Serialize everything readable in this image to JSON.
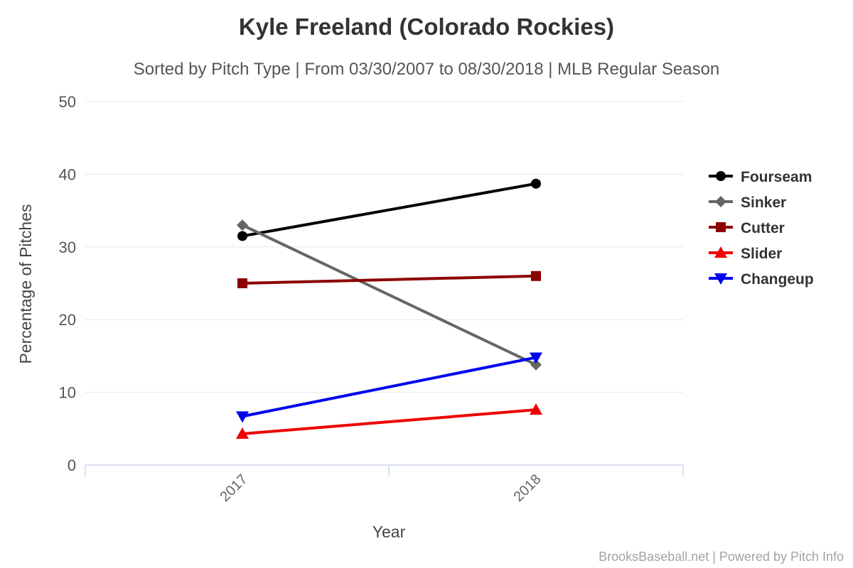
{
  "title": "Kyle Freeland (Colorado Rockies)",
  "subtitle": "Sorted by Pitch Type | From 03/30/2007 to 08/30/2018 | MLB Regular Season",
  "footer": "BrooksBaseball.net | Powered by Pitch Info",
  "colors": {
    "axis_line": "#ccd6eb",
    "gridline": "#e6e6e6",
    "title_text": "#333333",
    "subtitle_text": "#555555",
    "footer_text": "#a3a3a3"
  },
  "chart_data": {
    "type": "line",
    "categories": [
      "2017",
      "2018"
    ],
    "series": [
      {
        "name": "Fourseam",
        "values": [
          31.5,
          38.7
        ],
        "color": "#000000",
        "marker": "circle"
      },
      {
        "name": "Sinker",
        "values": [
          33.0,
          13.8
        ],
        "color": "#666666",
        "marker": "diamond"
      },
      {
        "name": "Cutter",
        "values": [
          25.0,
          26.0
        ],
        "color": "#8b0000",
        "marker": "square"
      },
      {
        "name": "Slider",
        "values": [
          4.3,
          7.6
        ],
        "color": "#ee0000",
        "marker": "triangle-up"
      },
      {
        "name": "Changeup",
        "values": [
          6.7,
          14.8
        ],
        "color": "#0000ee",
        "marker": "triangle-down"
      }
    ],
    "title": "Kyle Freeland (Colorado Rockies)",
    "subtitle": "Sorted by Pitch Type | From 03/30/2007 to 08/30/2018 | MLB Regular Season",
    "xlabel": "Year",
    "ylabel": "Percentage of Pitches",
    "ylim": [
      0,
      50
    ],
    "yticks": [
      0,
      10,
      20,
      30,
      40,
      50
    ],
    "grid": true,
    "legend_position": "right"
  }
}
